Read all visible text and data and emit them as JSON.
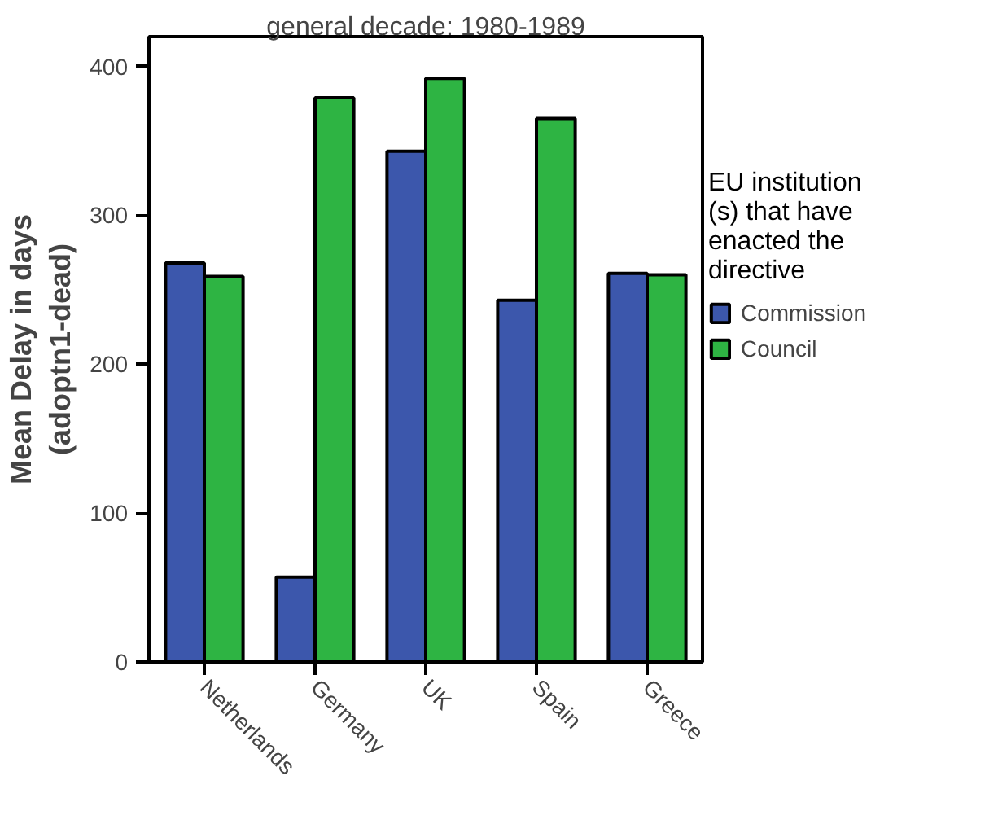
{
  "chart_data": {
    "type": "bar",
    "title": "general decade: 1980-1989",
    "ylabel": "Mean Delay in days (adoptn1-dead)",
    "legend_title": "EU institution (s) that have enacted the directive",
    "categories": [
      "Netherlands",
      "Germany",
      "UK",
      "Spain",
      "Greece"
    ],
    "series": [
      {
        "name": "Commission",
        "color": "#3c57ac",
        "values": [
          268,
          57,
          343,
          243,
          261
        ]
      },
      {
        "name": "Council",
        "color": "#2eb443",
        "values": [
          259,
          379,
          392,
          365,
          260
        ]
      }
    ],
    "ylim": [
      0,
      420
    ],
    "yticks": [
      0,
      100,
      200,
      300,
      400
    ],
    "legend": "right"
  }
}
